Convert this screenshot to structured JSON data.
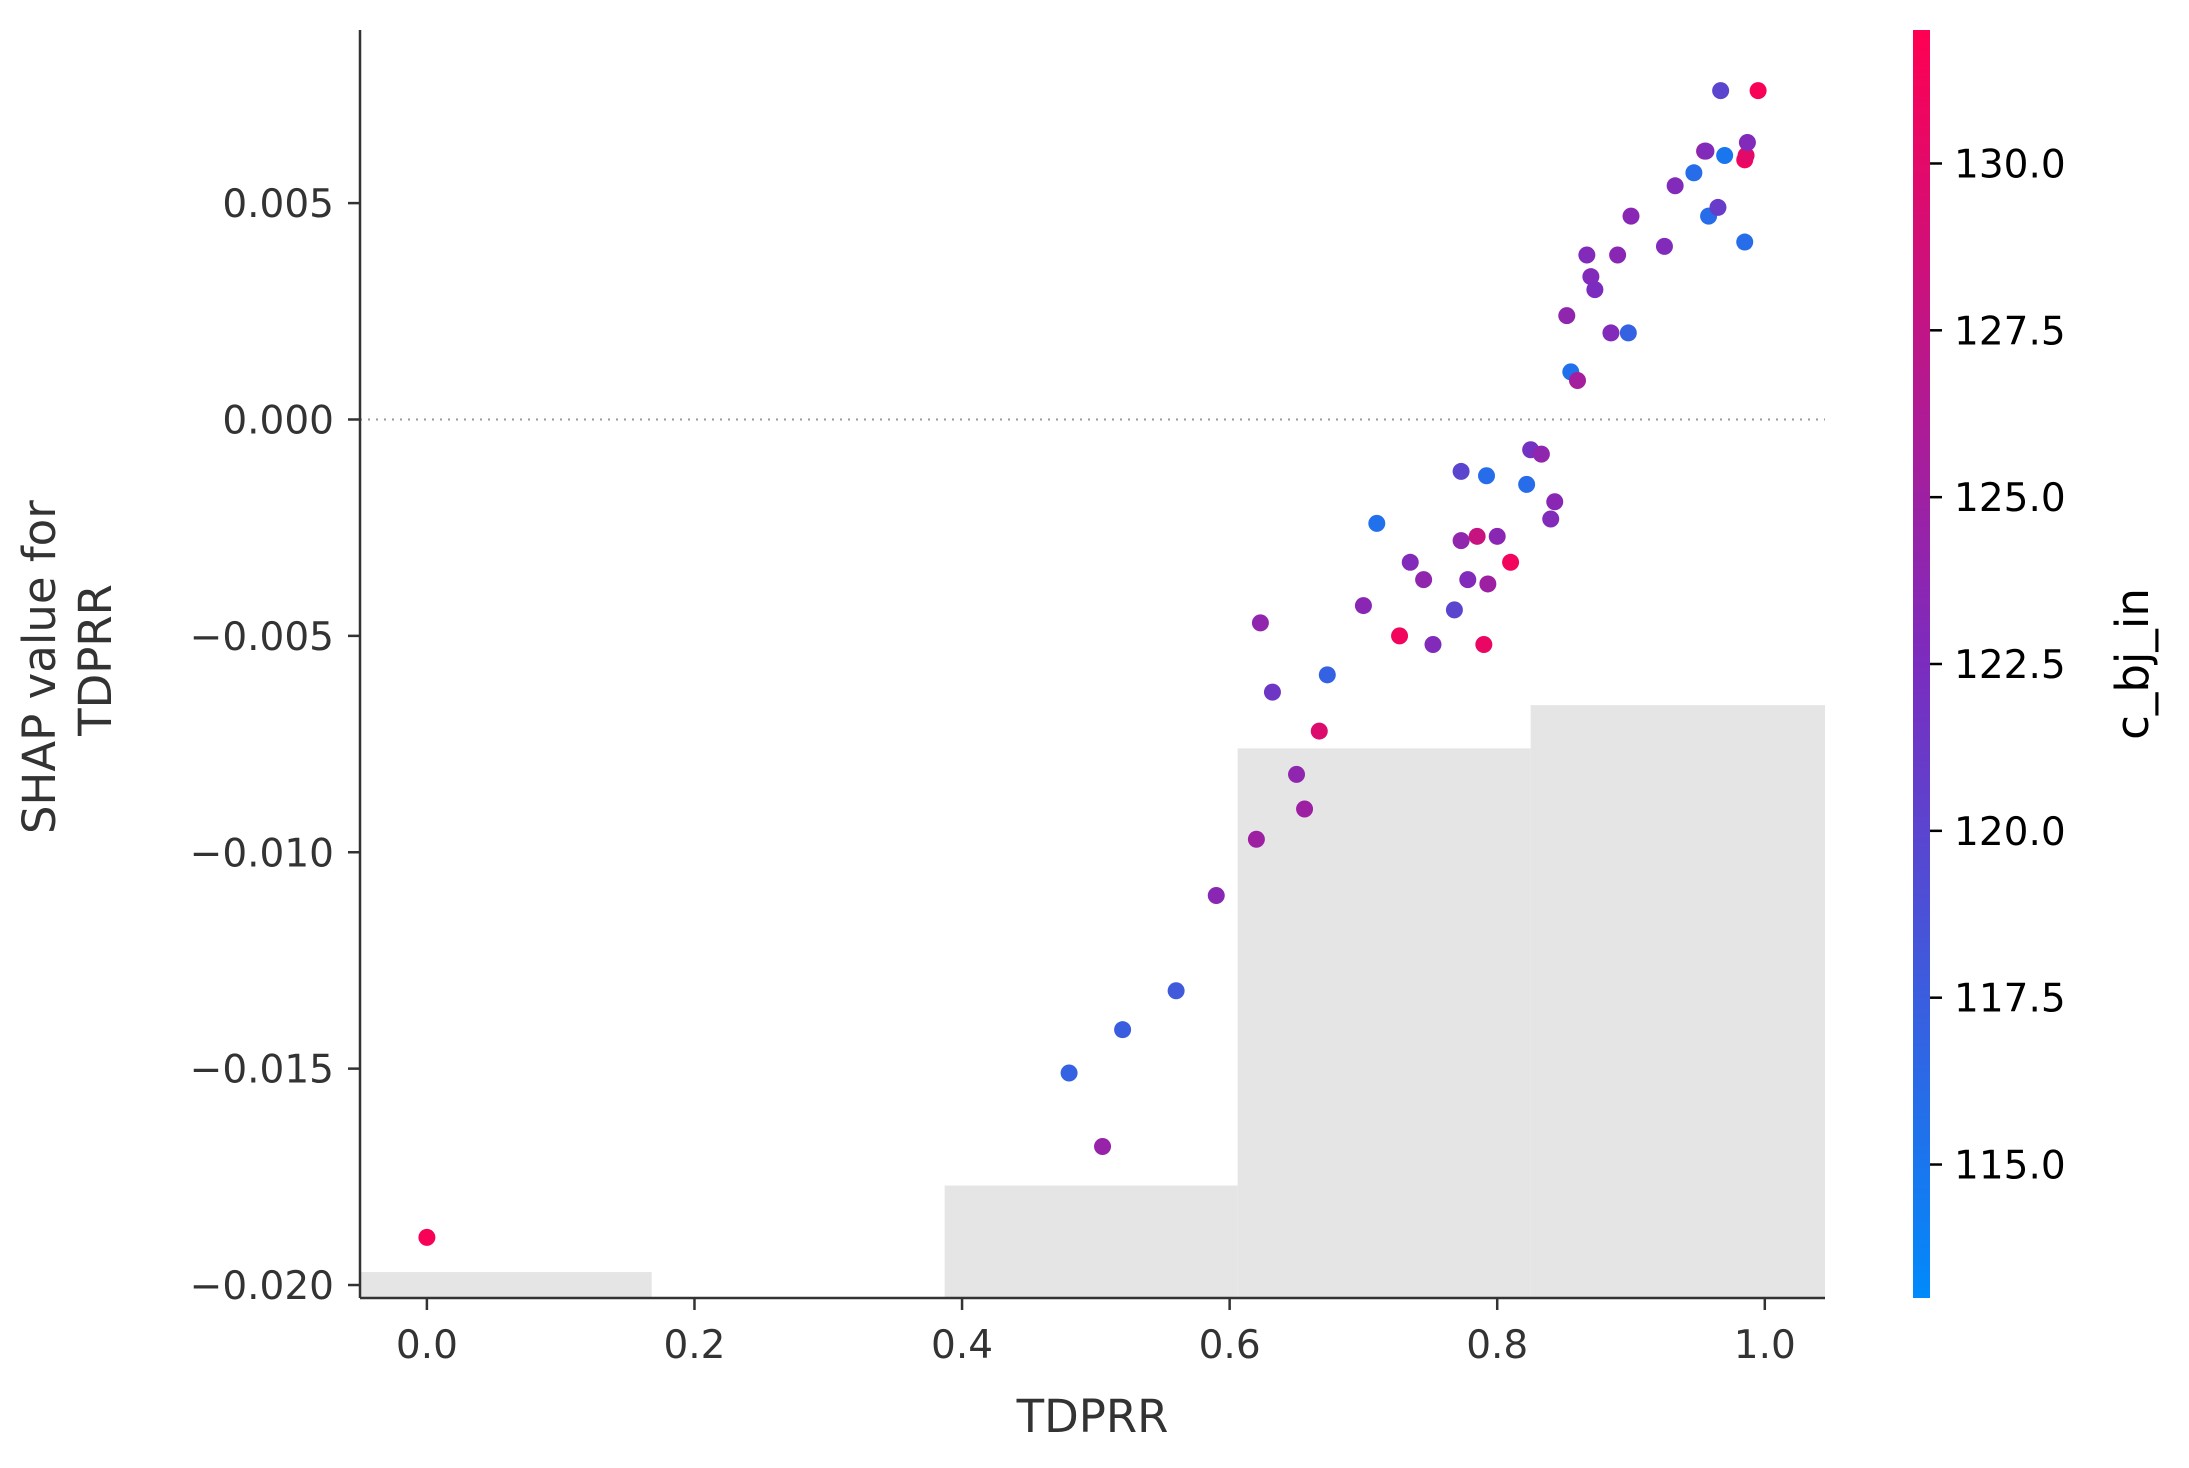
{
  "chart_data": {
    "type": "scatter",
    "xlabel": "TDPRR",
    "ylabel_lines": [
      "SHAP value for",
      "TDPRR"
    ],
    "xlim": [
      -0.05,
      1.045
    ],
    "ylim": [
      -0.0203,
      0.009
    ],
    "x_ticks": [
      0.0,
      0.2,
      0.4,
      0.6,
      0.8,
      1.0
    ],
    "x_tick_labels": [
      "0.0",
      "0.2",
      "0.4",
      "0.6",
      "0.8",
      "1.0"
    ],
    "y_ticks": [
      0.005,
      0.0,
      -0.005,
      -0.01,
      -0.015,
      -0.02
    ],
    "y_tick_labels": [
      "0.005",
      "0.000",
      "−0.005",
      "−0.010",
      "−0.015",
      "−0.020"
    ],
    "zero_line": true,
    "grid": false,
    "histogram": {
      "color": "#e5e5e5",
      "bins": [
        {
          "x0": -0.05,
          "x1": 0.168,
          "top": -0.0197
        },
        {
          "x0": 0.168,
          "x1": 0.387,
          "top": -0.0203
        },
        {
          "x0": 0.387,
          "x1": 0.606,
          "top": -0.0177
        },
        {
          "x0": 0.606,
          "x1": 0.825,
          "top": -0.0076
        },
        {
          "x0": 0.825,
          "x1": 1.045,
          "top": -0.0066
        }
      ]
    },
    "colorbar": {
      "label": "c_bj_in",
      "range": [
        113.0,
        132.0
      ],
      "ticks": [
        115.0,
        117.5,
        120.0,
        122.5,
        125.0,
        127.5,
        130.0
      ],
      "tick_labels": [
        "115.0",
        "117.5",
        "120.0",
        "122.5",
        "125.0",
        "127.5",
        "130.0"
      ],
      "colors": [
        "#008afb",
        "#7b2cbf",
        "#ff0052"
      ]
    },
    "points": [
      {
        "x": 0.0,
        "y": -0.0189,
        "c": 131.5
      },
      {
        "x": 0.48,
        "y": -0.0151,
        "c": 117.0
      },
      {
        "x": 0.505,
        "y": -0.0168,
        "c": 124.5
      },
      {
        "x": 0.52,
        "y": -0.0141,
        "c": 117.5
      },
      {
        "x": 0.56,
        "y": -0.0132,
        "c": 118.0
      },
      {
        "x": 0.59,
        "y": -0.011,
        "c": 123.5
      },
      {
        "x": 0.62,
        "y": -0.0097,
        "c": 125.0
      },
      {
        "x": 0.623,
        "y": -0.0047,
        "c": 124.0
      },
      {
        "x": 0.632,
        "y": -0.0063,
        "c": 121.5
      },
      {
        "x": 0.65,
        "y": -0.0082,
        "c": 124.0
      },
      {
        "x": 0.656,
        "y": -0.009,
        "c": 125.0
      },
      {
        "x": 0.667,
        "y": -0.0072,
        "c": 129.5
      },
      {
        "x": 0.673,
        "y": -0.0059,
        "c": 117.0
      },
      {
        "x": 0.7,
        "y": -0.0043,
        "c": 123.5
      },
      {
        "x": 0.71,
        "y": -0.0024,
        "c": 115.5
      },
      {
        "x": 0.727,
        "y": -0.005,
        "c": 131.0
      },
      {
        "x": 0.735,
        "y": -0.0033,
        "c": 123.0
      },
      {
        "x": 0.745,
        "y": -0.0037,
        "c": 124.0
      },
      {
        "x": 0.752,
        "y": -0.0052,
        "c": 123.0
      },
      {
        "x": 0.768,
        "y": -0.0044,
        "c": 120.0
      },
      {
        "x": 0.773,
        "y": -0.0012,
        "c": 120.0
      },
      {
        "x": 0.773,
        "y": -0.0028,
        "c": 124.0
      },
      {
        "x": 0.778,
        "y": -0.0037,
        "c": 123.0
      },
      {
        "x": 0.785,
        "y": -0.0027,
        "c": 128.0
      },
      {
        "x": 0.79,
        "y": -0.0052,
        "c": 130.5
      },
      {
        "x": 0.792,
        "y": -0.0013,
        "c": 116.0
      },
      {
        "x": 0.793,
        "y": -0.0038,
        "c": 125.0
      },
      {
        "x": 0.8,
        "y": -0.0027,
        "c": 123.5
      },
      {
        "x": 0.81,
        "y": -0.0033,
        "c": 131.0
      },
      {
        "x": 0.822,
        "y": -0.0015,
        "c": 116.0
      },
      {
        "x": 0.825,
        "y": -0.0007,
        "c": 122.0
      },
      {
        "x": 0.833,
        "y": -0.0008,
        "c": 124.0
      },
      {
        "x": 0.84,
        "y": -0.0023,
        "c": 123.0
      },
      {
        "x": 0.843,
        "y": -0.0019,
        "c": 123.5
      },
      {
        "x": 0.852,
        "y": 0.0024,
        "c": 124.0
      },
      {
        "x": 0.855,
        "y": 0.0011,
        "c": 115.5
      },
      {
        "x": 0.86,
        "y": 0.0009,
        "c": 125.5
      },
      {
        "x": 0.867,
        "y": 0.0038,
        "c": 123.0
      },
      {
        "x": 0.87,
        "y": 0.0033,
        "c": 123.0
      },
      {
        "x": 0.873,
        "y": 0.003,
        "c": 122.5
      },
      {
        "x": 0.885,
        "y": 0.002,
        "c": 123.0
      },
      {
        "x": 0.89,
        "y": 0.0038,
        "c": 123.5
      },
      {
        "x": 0.898,
        "y": 0.002,
        "c": 117.0
      },
      {
        "x": 0.9,
        "y": 0.0047,
        "c": 123.5
      },
      {
        "x": 0.925,
        "y": 0.004,
        "c": 123.0
      },
      {
        "x": 0.933,
        "y": 0.0054,
        "c": 123.0
      },
      {
        "x": 0.947,
        "y": 0.0057,
        "c": 116.0
      },
      {
        "x": 0.955,
        "y": 0.0062,
        "c": 125.0
      },
      {
        "x": 0.956,
        "y": 0.0062,
        "c": 123.0
      },
      {
        "x": 0.958,
        "y": 0.0047,
        "c": 116.0
      },
      {
        "x": 0.965,
        "y": 0.0049,
        "c": 121.0
      },
      {
        "x": 0.967,
        "y": 0.0076,
        "c": 120.0
      },
      {
        "x": 0.97,
        "y": 0.0061,
        "c": 115.0
      },
      {
        "x": 0.985,
        "y": 0.0041,
        "c": 116.0
      },
      {
        "x": 0.985,
        "y": 0.006,
        "c": 131.0
      },
      {
        "x": 0.986,
        "y": 0.0061,
        "c": 130.0
      },
      {
        "x": 0.987,
        "y": 0.0064,
        "c": 123.0
      },
      {
        "x": 0.995,
        "y": 0.0076,
        "c": 131.5
      }
    ]
  }
}
